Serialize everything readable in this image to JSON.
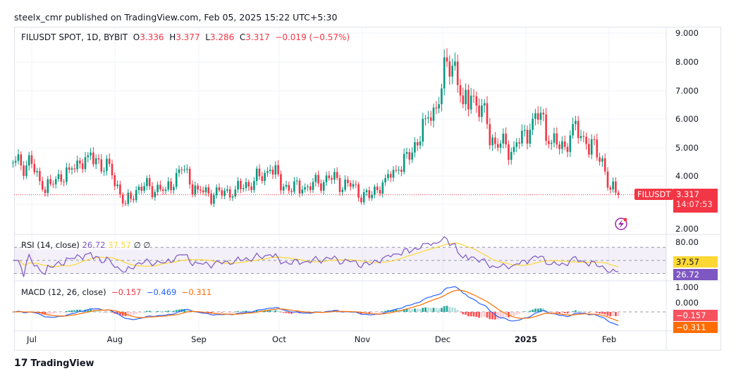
{
  "header": {
    "publisher": "steelx_cmr published on TradingView.com, Feb 05, 2025 15:22 UTC+5:30"
  },
  "legend": {
    "symbol": "FILUSDT SPOT, 1D, BYBIT",
    "o_label": "O",
    "o": "3.336",
    "h_label": "H",
    "h": "3.377",
    "l_label": "L",
    "l": "3.286",
    "c_label": "C",
    "c": "3.317",
    "change": "−0.019 (−0.57%)"
  },
  "rsi": {
    "title": "RSI (14, close)",
    "rsi": "26.72",
    "ma": "37.57",
    "x1": "∅",
    "x2": "∅",
    "axis": "80.00"
  },
  "macd": {
    "title": "MACD (12, 26, close)",
    "hist": "−0.157",
    "macd": "−0.469",
    "signal": "−0.311",
    "axis_top": "1.000",
    "axis_zero": "0.000"
  },
  "price_tag": {
    "symbol": "FILUSDT",
    "price": "3.317",
    "countdown": "14:07:53"
  },
  "brand": "TradingView",
  "colors": {
    "up": "#089981",
    "down": "#f23645",
    "rsi": "#7e57c2",
    "rsi_ma": "#fdd835",
    "macd": "#2962ff",
    "signal": "#ff6d00"
  },
  "chart_data": {
    "type": "candlestick",
    "interval": "1D",
    "price_axis": {
      "ticks": [
        "9.000",
        "8.000",
        "7.000",
        "6.000",
        "5.000",
        "4.000",
        "2.000"
      ],
      "ylim": [
        2,
        9
      ]
    },
    "time_axis": {
      "ticks": [
        "Jul",
        "Aug",
        "Sep",
        "Oct",
        "Nov",
        "Dec",
        "2025",
        "Feb"
      ]
    },
    "close_keypoints": [
      [
        "2024-06-24",
        4.45
      ],
      [
        "2024-07-01",
        4.4
      ],
      [
        "2024-07-05",
        3.5
      ],
      [
        "2024-07-08",
        3.7
      ],
      [
        "2024-07-15",
        4.2
      ],
      [
        "2024-07-22",
        4.7
      ],
      [
        "2024-07-25",
        4.6
      ],
      [
        "2024-07-31",
        4.0
      ],
      [
        "2024-08-05",
        3.0
      ],
      [
        "2024-08-10",
        3.6
      ],
      [
        "2024-08-20",
        3.5
      ],
      [
        "2024-08-26",
        4.2
      ],
      [
        "2024-09-01",
        3.5
      ],
      [
        "2024-09-07",
        3.3
      ],
      [
        "2024-09-15",
        3.5
      ],
      [
        "2024-09-22",
        3.8
      ],
      [
        "2024-09-28",
        4.2
      ],
      [
        "2024-10-03",
        3.6
      ],
      [
        "2024-10-10",
        3.5
      ],
      [
        "2024-10-20",
        3.9
      ],
      [
        "2024-10-28",
        3.6
      ],
      [
        "2024-11-04",
        3.2
      ],
      [
        "2024-11-10",
        3.9
      ],
      [
        "2024-11-15",
        4.2
      ],
      [
        "2024-11-20",
        4.8
      ],
      [
        "2024-11-25",
        6.0
      ],
      [
        "2024-11-30",
        6.5
      ],
      [
        "2024-12-03",
        8.0
      ],
      [
        "2024-12-06",
        8.0
      ],
      [
        "2024-12-09",
        6.5
      ],
      [
        "2024-12-12",
        6.8
      ],
      [
        "2024-12-18",
        5.8
      ],
      [
        "2024-12-21",
        5.1
      ],
      [
        "2024-12-28",
        5.0
      ],
      [
        "2025-01-03",
        5.6
      ],
      [
        "2025-01-07",
        6.2
      ],
      [
        "2025-01-10",
        5.1
      ],
      [
        "2025-01-16",
        5.0
      ],
      [
        "2025-01-19",
        5.8
      ],
      [
        "2025-01-24",
        5.1
      ],
      [
        "2025-01-30",
        4.6
      ],
      [
        "2025-02-02",
        3.5
      ],
      [
        "2025-02-05",
        3.317
      ]
    ],
    "last_price": 3.317
  }
}
